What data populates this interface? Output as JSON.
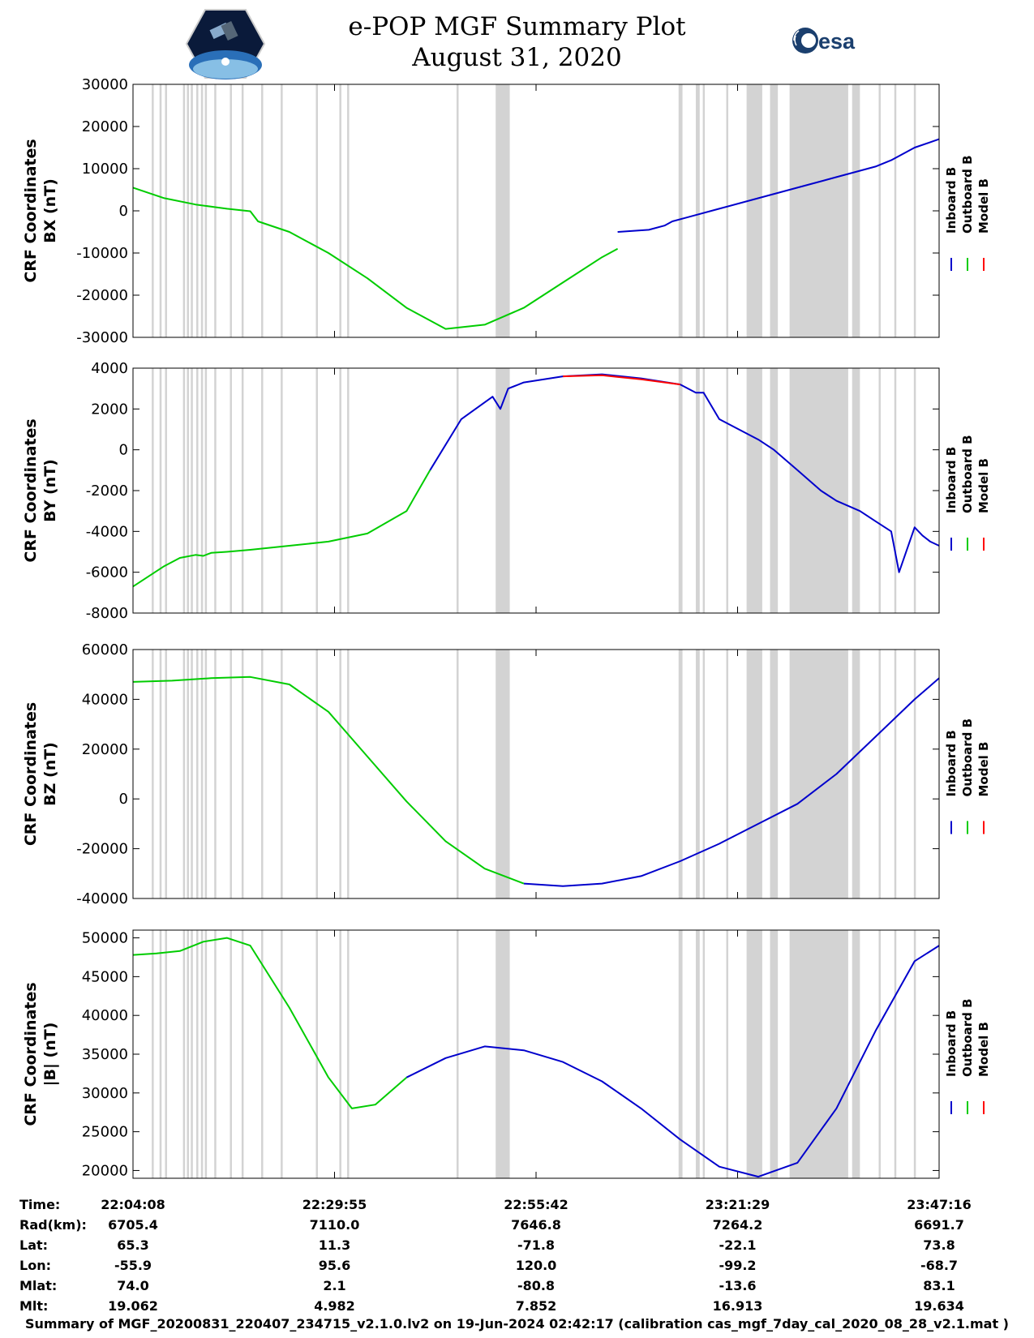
{
  "title": {
    "line1": "e-POP MGF Summary Plot",
    "line2": "August 31, 2020"
  },
  "logos": {
    "left": "CASSIOPE mission logo",
    "right_text": "esa"
  },
  "legend": {
    "labels": [
      "Inboard B",
      "Outboard B",
      "Model B"
    ],
    "colors": [
      "#0000cc",
      "#00cc00",
      "#ff0000"
    ]
  },
  "chart_data": [
    {
      "type": "line",
      "ylabel_line1": "CRF Coordinates",
      "ylabel_line2": "BX (nT)",
      "ylim": [
        -30000,
        30000
      ],
      "yticks": [
        30000,
        20000,
        10000,
        0,
        -10000,
        -20000,
        -30000
      ],
      "xlim_minutes": [
        0,
        103.13
      ],
      "series": [
        {
          "name": "Outboard B",
          "color": "#00cc00",
          "x": [
            0,
            4,
            8,
            12,
            15,
            16,
            20,
            25,
            30,
            35,
            38,
            40,
            45,
            50,
            55,
            60,
            62
          ],
          "y": [
            5500,
            3000,
            1500,
            500,
            -100,
            -2500,
            -5000,
            -10000,
            -16000,
            -23000,
            -26000,
            -28000,
            -27000,
            -23000,
            -17000,
            -11000,
            -9000
          ]
        },
        {
          "name": "Inboard B",
          "color": "#0000cc",
          "x": [
            62,
            66,
            68,
            69,
            71,
            75,
            80,
            85,
            90,
            95,
            97,
            100,
            103.13
          ],
          "y": [
            -5000,
            -4500,
            -3500,
            -2500,
            -1500,
            500,
            3000,
            5500,
            8000,
            10500,
            12000,
            15000,
            17000
          ]
        }
      ]
    },
    {
      "type": "line",
      "ylabel_line1": "CRF Coordinates",
      "ylabel_line2": "BY (nT)",
      "ylim": [
        -8000,
        4000
      ],
      "yticks": [
        4000,
        2000,
        0,
        -2000,
        -4000,
        -6000,
        -8000
      ],
      "xlim_minutes": [
        0,
        103.13
      ],
      "series": [
        {
          "name": "Outboard B",
          "color": "#00cc00",
          "x": [
            0,
            2,
            4,
            6,
            8,
            9,
            10,
            12,
            15,
            20,
            25,
            30,
            35,
            38
          ],
          "y": [
            -6700,
            -6200,
            -5700,
            -5300,
            -5150,
            -5200,
            -5050,
            -5000,
            -4900,
            -4700,
            -4500,
            -4100,
            -3000,
            -1000
          ]
        },
        {
          "name": "Inboard B",
          "color": "#0000cc",
          "x": [
            38,
            42,
            46,
            47,
            48,
            50,
            55,
            60,
            65,
            70,
            72,
            73,
            75,
            80,
            82,
            85,
            88,
            90,
            93,
            95,
            97,
            98,
            100,
            101,
            102,
            103.13
          ],
          "y": [
            -1000,
            1500,
            2600,
            2000,
            3000,
            3300,
            3600,
            3700,
            3500,
            3200,
            2800,
            2800,
            1500,
            500,
            0,
            -1000,
            -2000,
            -2500,
            -3000,
            -3500,
            -4000,
            -6000,
            -3800,
            -4200,
            -4500,
            -4700
          ]
        },
        {
          "name": "Model B",
          "color": "#ff0000",
          "x": [
            55,
            60,
            65,
            70
          ],
          "y": [
            3600,
            3650,
            3450,
            3200
          ]
        }
      ]
    },
    {
      "type": "line",
      "ylabel_line1": "CRF Coordinates",
      "ylabel_line2": "BZ (nT)",
      "ylim": [
        -40000,
        60000
      ],
      "yticks": [
        60000,
        40000,
        20000,
        0,
        -20000,
        -40000
      ],
      "xlim_minutes": [
        0,
        103.13
      ],
      "series": [
        {
          "name": "Outboard B",
          "color": "#00cc00",
          "x": [
            0,
            5,
            10,
            15,
            20,
            25,
            30,
            35,
            40,
            45,
            50
          ],
          "y": [
            47000,
            47500,
            48500,
            49000,
            46000,
            35000,
            17000,
            -1000,
            -17000,
            -28000,
            -34000
          ]
        },
        {
          "name": "Inboard B",
          "color": "#0000cc",
          "x": [
            50,
            55,
            60,
            65,
            70,
            75,
            80,
            85,
            90,
            95,
            100,
            103.13
          ],
          "y": [
            -34000,
            -35000,
            -34000,
            -31000,
            -25000,
            -18000,
            -10000,
            -2000,
            10000,
            25000,
            40000,
            48500
          ]
        }
      ]
    },
    {
      "type": "line",
      "ylabel_line1": "CRF Coordinates",
      "ylabel_line2": "|B| (nT)",
      "ylim": [
        19000,
        51000
      ],
      "yticks": [
        50000,
        45000,
        40000,
        35000,
        30000,
        25000,
        20000
      ],
      "xlim_minutes": [
        0,
        103.13
      ],
      "series": [
        {
          "name": "Outboard B",
          "color": "#00cc00",
          "x": [
            0,
            3,
            6,
            9,
            12,
            15,
            20,
            25,
            28,
            31,
            35
          ],
          "y": [
            47800,
            48000,
            48300,
            49500,
            50000,
            49000,
            41000,
            32000,
            28000,
            28500,
            32000
          ]
        },
        {
          "name": "Inboard B",
          "color": "#0000cc",
          "x": [
            35,
            40,
            45,
            50,
            55,
            60,
            65,
            70,
            75,
            80,
            85,
            90,
            95,
            100,
            103.13
          ],
          "y": [
            32000,
            34500,
            36000,
            35500,
            34000,
            31500,
            28000,
            24000,
            20500,
            19200,
            21000,
            28000,
            38000,
            47000,
            49000
          ]
        }
      ]
    }
  ],
  "data_gaps_minutes": [
    2.5,
    3.5,
    4.2,
    6.5,
    7.0,
    7.5,
    8.2,
    8.8,
    9.3,
    10.5,
    12.5,
    14.0,
    16.5,
    19.0,
    23.5,
    26.5,
    27.5,
    41.5,
    73.0,
    76.0,
    87.5,
    91.0,
    95.5,
    97.5,
    100.0
  ],
  "data_gaps_wide_minutes": [
    [
      46.4,
      48.2
    ],
    [
      69.8,
      70.3
    ],
    [
      72.0,
      72.5
    ],
    [
      78.5,
      80.5
    ],
    [
      81.5,
      82.5
    ],
    [
      84.0,
      91.5
    ],
    [
      92.0,
      93.0
    ]
  ],
  "info_table": {
    "labels": [
      "Time:",
      "Rad(km):",
      "Lat:",
      "Lon:",
      "Mlat:",
      "Mlt:"
    ],
    "columns": [
      [
        "22:04:08",
        "6705.4",
        "65.3",
        "-55.9",
        "74.0",
        "19.062"
      ],
      [
        "22:29:55",
        "7110.0",
        "11.3",
        "95.6",
        "2.1",
        "4.982"
      ],
      [
        "22:55:42",
        "7646.8",
        "-71.8",
        "120.0",
        "-80.8",
        "7.852"
      ],
      [
        "23:21:29",
        "7264.2",
        "-22.1",
        "-99.2",
        "-13.6",
        "16.913"
      ],
      [
        "23:47:16",
        "6691.7",
        "73.8",
        "-68.7",
        "83.1",
        "19.634"
      ]
    ]
  },
  "footer": "Summary of MGF_20200831_220407_234715_v2.1.0.lv2 on 19-Jun-2024 02:42:17 (calibration cas_mgf_7day_cal_2020_08_28_v2.1.mat )"
}
